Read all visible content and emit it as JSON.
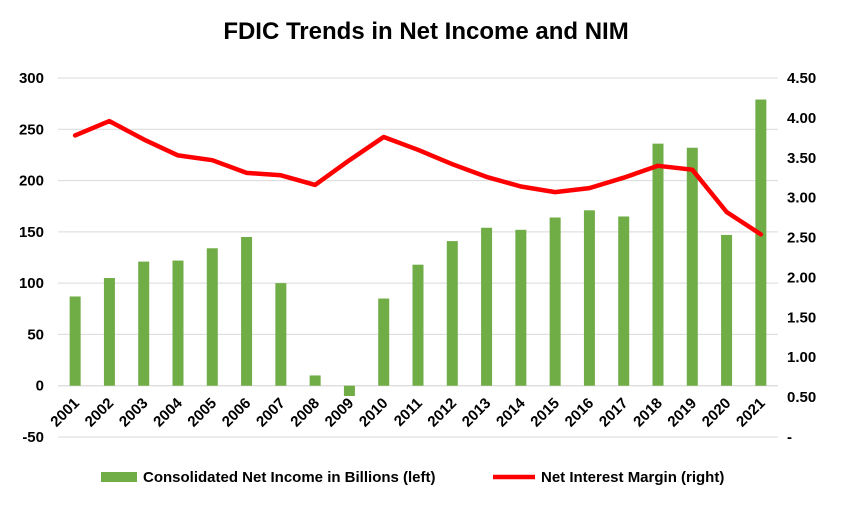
{
  "chart_data": {
    "type": "bar",
    "title": "FDIC Trends in Net Income and NIM",
    "categories": [
      "2001",
      "2002",
      "2003",
      "2004",
      "2005",
      "2006",
      "2007",
      "2008",
      "2009",
      "2010",
      "2011",
      "2012",
      "2013",
      "2014",
      "2015",
      "2016",
      "2017",
      "2018",
      "2019",
      "2020",
      "2021"
    ],
    "series": [
      {
        "name": "Consolidated Net Income in Billions (left)",
        "type": "bar",
        "axis": "left",
        "color": "#70AD47",
        "values": [
          87,
          105,
          121,
          122,
          134,
          145,
          100,
          10,
          -10,
          85,
          118,
          141,
          154,
          152,
          164,
          171,
          165,
          236,
          232,
          147,
          279
        ]
      },
      {
        "name": "Net Interest Margin (right)",
        "type": "line",
        "axis": "right",
        "color": "#FF0000",
        "values": [
          3.78,
          3.96,
          3.73,
          3.53,
          3.47,
          3.31,
          3.28,
          3.16,
          3.47,
          3.76,
          3.6,
          3.42,
          3.26,
          3.14,
          3.07,
          3.12,
          3.25,
          3.4,
          3.35,
          2.82,
          2.54
        ]
      }
    ],
    "y_left": {
      "min": -50,
      "max": 300,
      "ticks": [
        -50,
        0,
        50,
        100,
        150,
        200,
        250,
        300
      ],
      "tick_labels": [
        "-50",
        "0",
        "50",
        "100",
        "150",
        "200",
        "250",
        "300"
      ]
    },
    "y_right": {
      "min": 0,
      "max": 4.5,
      "ticks": [
        0,
        0.5,
        1,
        1.5,
        2,
        2.5,
        3,
        3.5,
        4,
        4.5
      ],
      "tick_labels": [
        "-",
        "0.50",
        "1.00",
        "1.50",
        "2.00",
        "2.50",
        "3.00",
        "3.50",
        "4.00",
        "4.50"
      ]
    },
    "grid": true,
    "legend": "bottom"
  }
}
